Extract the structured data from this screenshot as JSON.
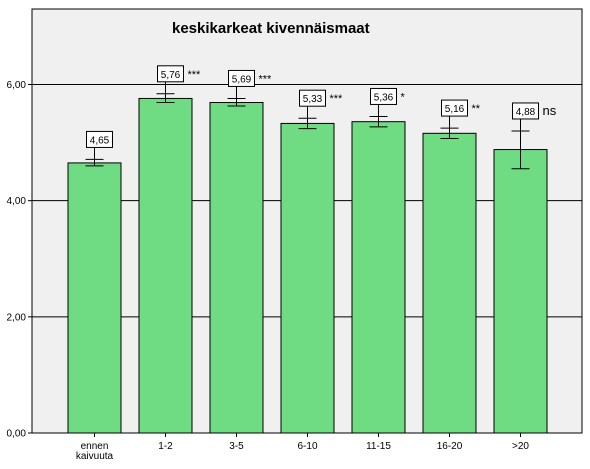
{
  "chart_data": {
    "type": "bar",
    "title": "keskikarkeat kivennäismaat",
    "xlabel": "",
    "ylabel": "",
    "categories": [
      [
        "ennen",
        "kaivuuta"
      ],
      [
        "1-2"
      ],
      [
        "3-5"
      ],
      [
        "6-10"
      ],
      [
        "11-15"
      ],
      [
        "16-20"
      ],
      [
        ">20"
      ]
    ],
    "values": [
      4.65,
      5.76,
      5.69,
      5.33,
      5.36,
      5.16,
      4.88
    ],
    "value_labels": [
      "4,65",
      "5,76",
      "5,69",
      "5,33",
      "5,36",
      "5,16",
      "4,88"
    ],
    "error_low": [
      4.6,
      5.69,
      5.63,
      5.24,
      5.27,
      5.07,
      4.55
    ],
    "error_high": [
      4.71,
      5.84,
      5.76,
      5.42,
      5.45,
      5.25,
      5.2
    ],
    "significance": [
      "",
      "***",
      "***",
      "***",
      "*",
      "**",
      "ns"
    ],
    "ylim": [
      0,
      7.3
    ],
    "yticks": [
      0,
      2,
      4,
      6
    ],
    "ytick_labels": [
      "0,00",
      "2,00",
      "4,00",
      "6,00"
    ],
    "grid": true,
    "legend": "none",
    "colors": {
      "bar_fill": "#6fdc84",
      "bar_stroke": "#000000",
      "plot_background": "#f0f0f0",
      "grid": "#000000"
    }
  }
}
